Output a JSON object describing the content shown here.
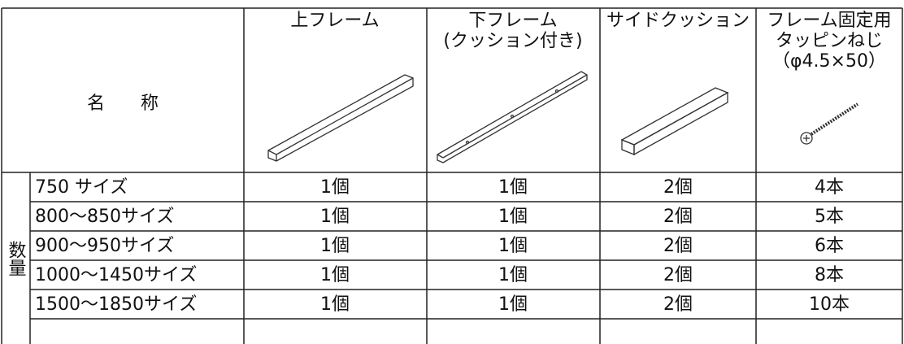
{
  "table": {
    "name_header": "名　　称",
    "columns": [
      [
        "上フレーム"
      ],
      [
        "下フレーム",
        "(クッション付き)"
      ],
      [
        "サイドクッション"
      ],
      [
        "フレーム固定用",
        "タッピンねじ",
        "（φ4.5×50）"
      ]
    ],
    "quantity_label": "数量",
    "rows": [
      [
        "750 サイズ",
        "1個",
        "1個",
        "2個",
        "4本"
      ],
      [
        "800〜850サイズ",
        "1個",
        "1個",
        "2個",
        "5本"
      ],
      [
        "900〜950サイズ",
        "1個",
        "1個",
        "2個",
        "6本"
      ],
      [
        "1000〜1450サイズ",
        "1個",
        "1個",
        "2個",
        "8本"
      ],
      [
        "1500〜1850サイズ",
        "1個",
        "1個",
        "2個",
        "10本"
      ]
    ]
  }
}
